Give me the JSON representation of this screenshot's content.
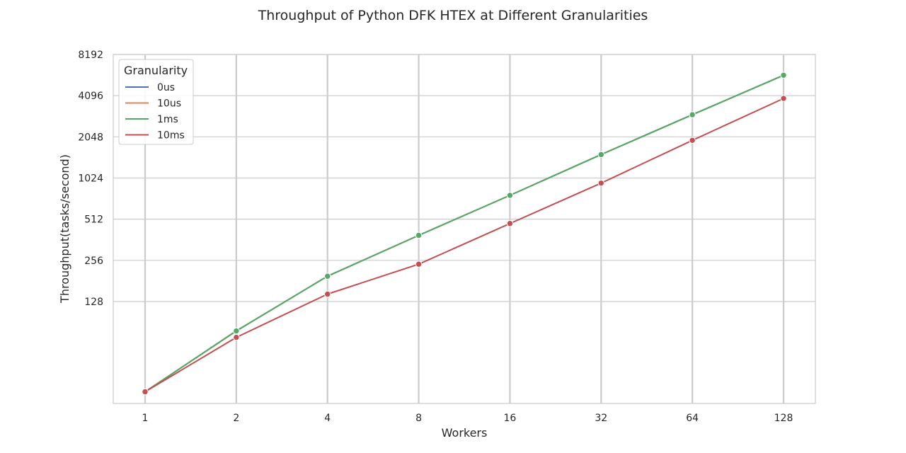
{
  "chart_data": {
    "type": "line",
    "title": "Throughput of Python DFK HTEX at Different Granularities",
    "xlabel": "Workers",
    "ylabel": "Throughput(tasks/second)",
    "x": [
      1,
      2,
      4,
      8,
      16,
      32,
      64,
      128
    ],
    "x_tick_labels": [
      "1",
      "2",
      "4",
      "8",
      "16",
      "32",
      "64",
      "128"
    ],
    "y_ticks": [
      128,
      256,
      512,
      1024,
      2048,
      4096,
      8192
    ],
    "y_tick_labels": [
      "128",
      "256",
      "512",
      "1024",
      "2048",
      "4096",
      "8192"
    ],
    "y_scale": "log2",
    "ylim": [
      23,
      8192
    ],
    "grid": true,
    "legend": {
      "title": "Granularity",
      "placement": "top-left"
    },
    "series": [
      {
        "name": "0us",
        "color": "#4c72b0",
        "values": [
          28,
          78,
          196,
          390,
          765,
          1520,
          2970,
          5780
        ]
      },
      {
        "name": "10us",
        "color": "#dd8452",
        "values": [
          28,
          78,
          196,
          390,
          765,
          1520,
          2970,
          5780
        ]
      },
      {
        "name": "1ms",
        "color": "#55a868",
        "values": [
          28,
          78,
          196,
          390,
          765,
          1520,
          2970,
          5780
        ]
      },
      {
        "name": "10ms",
        "color": "#c44e52",
        "values": [
          28,
          70,
          145,
          240,
          476,
          940,
          1930,
          3910
        ]
      }
    ]
  }
}
